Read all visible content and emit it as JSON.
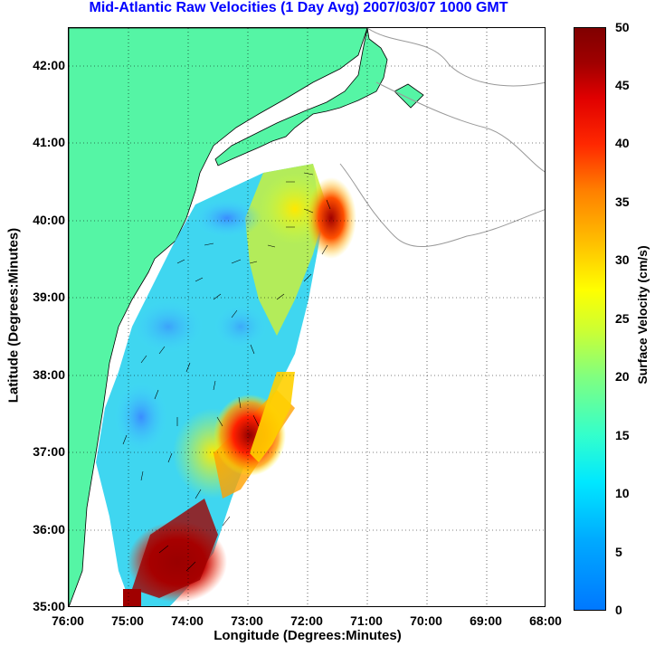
{
  "title": "Mid-Atlantic Raw Velocities (1 Day Avg) 2007/03/07 1000 GMT",
  "axes": {
    "x_title": "Longitude (Degrees:Minutes)",
    "y_title": "Latitude (Degrees:Minutes)",
    "lon_ticks": [
      "76:00",
      "75:00",
      "74:00",
      "73:00",
      "72:00",
      "71:00",
      "70:00",
      "69:00",
      "68:00"
    ],
    "lat_ticks": [
      "42:00",
      "41:00",
      "40:00",
      "39:00",
      "38:00",
      "37:00",
      "36:00",
      "35:00"
    ]
  },
  "colorbar": {
    "title": "Surface Velocity (cm/s)",
    "ticks": [
      "50",
      "45",
      "40",
      "35",
      "30",
      "25",
      "20",
      "15",
      "10",
      "5",
      "0"
    ],
    "min": 0,
    "max": 50
  },
  "colors": {
    "land": "#55f5a5",
    "title": "#0000ff",
    "grid": "#000000",
    "coast_outline": "#999999"
  }
}
